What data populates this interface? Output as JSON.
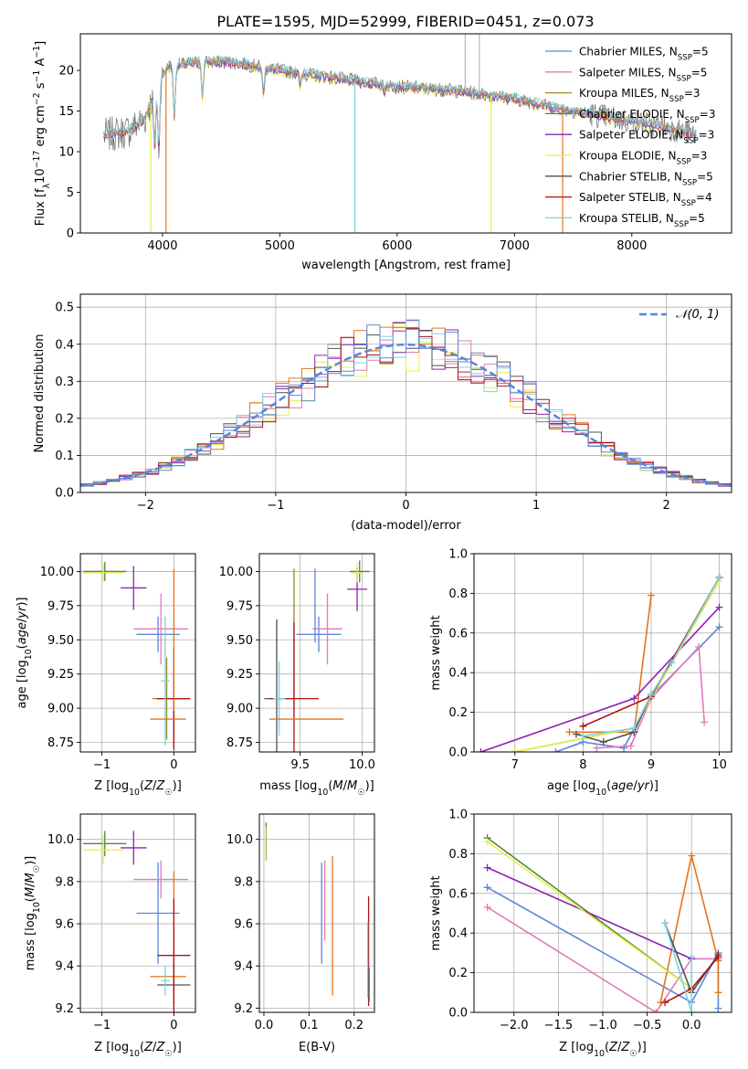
{
  "figure_title": "PLATE=1595, MJD=52999, FIBERID=0451, z=0.073",
  "colors": {
    "Chabrier MILES": "#5b86d8",
    "Salpeter MILES": "#e07aba",
    "Kroupa MILES": "#9a8a1e",
    "Chabrier ELODIE": "#4a8a3a",
    "Salpeter ELODIE": "#8e22b0",
    "Kroupa ELODIE": "#ecee4a",
    "Chabrier STELIB": "#505050",
    "Salpeter STELIB": "#b01010",
    "Kroupa STELIB": "#7ad4e0",
    "extra_orange": "#e8731a",
    "normal_curve": "#5b86d8"
  },
  "chart_data": [
    {
      "id": "spectrum",
      "type": "line",
      "title": "PLATE=1595, MJD=52999, FIBERID=0451, z=0.073",
      "xlabel": "wavelength [Angstrom, rest frame]",
      "ylabel": "Flux [f_λ10^-17 erg cm^-2 s^-1 A^-1]",
      "xlim": [
        3300,
        8850
      ],
      "ylim": [
        0,
        24.5
      ],
      "xticks": [
        4000,
        5000,
        6000,
        7000,
        8000
      ],
      "yticks": [
        0,
        5,
        10,
        15,
        20
      ],
      "legend_position": "top-right",
      "legend": [
        {
          "label": "Chabrier MILES, N",
          "sub": "SSP",
          "tail": "=5"
        },
        {
          "label": "Salpeter MILES, N",
          "sub": "SSP",
          "tail": "=5"
        },
        {
          "label": "Kroupa MILES, N",
          "sub": "SSP",
          "tail": "=3"
        },
        {
          "label": "Chabrier ELODIE, N",
          "sub": "SSP",
          "tail": "=3"
        },
        {
          "label": "Salpeter ELODIE, N",
          "sub": "SSP",
          "tail": "=3"
        },
        {
          "label": "Kroupa ELODIE, N",
          "sub": "SSP",
          "tail": "=3"
        },
        {
          "label": "Chabrier STELIB, N",
          "sub": "SSP",
          "tail": "=5"
        },
        {
          "label": "Salpeter STELIB, N",
          "sub": "SSP",
          "tail": "=4"
        },
        {
          "label": "Kroupa STELIB, N",
          "sub": "SSP",
          "tail": "=5"
        }
      ],
      "continuum_points": [
        [
          3500,
          12
        ],
        [
          3700,
          12.5
        ],
        [
          3850,
          14
        ],
        [
          3950,
          18
        ],
        [
          4050,
          20.5
        ],
        [
          4300,
          21
        ],
        [
          4600,
          21
        ],
        [
          5000,
          20
        ],
        [
          5500,
          19
        ],
        [
          6000,
          18
        ],
        [
          6500,
          17.5
        ],
        [
          7000,
          16.5
        ],
        [
          7500,
          15
        ],
        [
          7900,
          14
        ],
        [
          8300,
          13
        ],
        [
          8550,
          12
        ]
      ],
      "absorption_features": [
        [
          3933,
          6
        ],
        [
          3968,
          5
        ],
        [
          4101,
          10
        ],
        [
          4340,
          14
        ],
        [
          4861,
          15
        ],
        [
          5175,
          17
        ],
        [
          5890,
          17
        ]
      ],
      "spikes": [
        [
          3900,
          0,
          "#ecee4a"
        ],
        [
          4030,
          0,
          "#e8731a"
        ],
        [
          5640,
          0,
          "#7ad4e0"
        ],
        [
          6800,
          0,
          "#ecee4a"
        ],
        [
          7410,
          0,
          "#e8731a"
        ],
        [
          6580,
          24.5,
          "#b8b8b8"
        ],
        [
          6700,
          24.5,
          "#b8b8b8"
        ]
      ]
    },
    {
      "id": "residuals",
      "type": "line",
      "xlabel": "(data-model)/error",
      "ylabel": "Normed distribution",
      "xlim": [
        -2.5,
        2.5
      ],
      "ylim": [
        0,
        0.535
      ],
      "xticks": [
        -2,
        -1,
        0,
        1,
        2
      ],
      "yticks": [
        0.0,
        0.1,
        0.2,
        0.3,
        0.4,
        0.5
      ],
      "legend_position": "top-right",
      "legend": [
        {
          "label": "𝒩(0, 1)"
        }
      ],
      "grid": true,
      "bin_width": 0.1
    },
    {
      "id": "age_vs_Z",
      "type": "scatter",
      "xlabel": "Z [log10(Z/Z☉)]",
      "ylabel": "age  [log10(age/yr)]",
      "xlim": [
        -1.3,
        0.3
      ],
      "ylim": [
        8.68,
        10.13
      ],
      "xticks": [
        -1,
        0
      ],
      "yticks": [
        8.75,
        9.0,
        9.25,
        9.5,
        9.75,
        10.0
      ],
      "grid": true,
      "points": [
        {
          "series": "Chabrier MILES",
          "x": -0.22,
          "y": 9.54,
          "xerr": 0.3,
          "yerr": 0.13
        },
        {
          "series": "Salpeter MILES",
          "x": -0.18,
          "y": 9.58,
          "xerr": 0.38,
          "yerr": 0.26
        },
        {
          "series": "Kroupa MILES",
          "x": -0.1,
          "y": 9.07,
          "xerr": 0.2,
          "yerr": 0.3
        },
        {
          "series": "Chabrier ELODIE",
          "x": -0.96,
          "y": 10.0,
          "xerr": 0.3,
          "yerr": 0.07
        },
        {
          "series": "Salpeter ELODIE",
          "x": -0.56,
          "y": 9.88,
          "xerr": 0.18,
          "yerr": 0.16
        },
        {
          "series": "Kroupa ELODIE",
          "x": -0.98,
          "y": 9.99,
          "xerr": 0.28,
          "yerr": 0.07
        },
        {
          "series": "Chabrier STELIB",
          "x": 0.0,
          "y": 9.07,
          "xerr": 0.23,
          "yerr": 0.38
        },
        {
          "series": "Salpeter STELIB",
          "x": 0.0,
          "y": 9.07,
          "xerr": 0.23,
          "yerr": 0.36
        },
        {
          "series": "Kroupa STELIB",
          "x": -0.12,
          "y": 9.2,
          "xerr": 0.06,
          "yerr": 0.47
        },
        {
          "series": "extra_orange",
          "x": -0.08,
          "y": 8.92,
          "xerr": 0.25,
          "yerr": 0.0
        },
        {
          "series": "extra_orange",
          "x": 0.0,
          "y": 9.5,
          "xerr": 0.0,
          "yerr": 0.52
        }
      ]
    },
    {
      "id": "age_vs_mass",
      "type": "scatter",
      "xlabel": "mass [log10(M/M☉)]",
      "xlim": [
        9.17,
        10.1
      ],
      "ylim": [
        8.68,
        10.13
      ],
      "xticks": [
        9.5,
        10.0
      ],
      "yticks": [
        8.75,
        9.0,
        9.25,
        9.5,
        9.75,
        10.0
      ],
      "grid": true,
      "points": [
        {
          "series": "Chabrier MILES",
          "x": 9.65,
          "y": 9.54,
          "xerr": 0.18,
          "yerr": 0.13
        },
        {
          "series": "Salpeter MILES",
          "x": 9.72,
          "y": 9.58,
          "xerr": 0.12,
          "yerr": 0.26
        },
        {
          "series": "Kroupa MILES",
          "x": 9.45,
          "y": 9.5,
          "xerr": 0.0,
          "yerr": 0.52
        },
        {
          "series": "Chabrier ELODIE",
          "x": 9.98,
          "y": 10.0,
          "xerr": 0.08,
          "yerr": 0.08
        },
        {
          "series": "Salpeter ELODIE",
          "x": 9.96,
          "y": 9.87,
          "xerr": 0.08,
          "yerr": 0.16
        },
        {
          "series": "Kroupa ELODIE",
          "x": 9.96,
          "y": 9.99,
          "xerr": 0.05,
          "yerr": 0.07
        },
        {
          "series": "Chabrier STELIB",
          "x": 9.31,
          "y": 9.07,
          "xerr": 0.1,
          "yerr": 0.58
        },
        {
          "series": "Salpeter STELIB",
          "x": 9.45,
          "y": 9.07,
          "xerr": 0.2,
          "yerr": 0.56
        },
        {
          "series": "Kroupa STELIB",
          "x": 9.33,
          "y": 9.07,
          "xerr": 0.05,
          "yerr": 0.27
        },
        {
          "series": "extra_orange",
          "x": 9.55,
          "y": 8.92,
          "xerr": 0.3,
          "yerr": 0.0
        },
        {
          "series": "Chabrier MILES",
          "x": 9.62,
          "y": 9.75,
          "xerr": 0.0,
          "yerr": 0.27
        }
      ]
    },
    {
      "id": "mass_weight_vs_age",
      "type": "line",
      "xlabel": "age  [log10(age/yr)]",
      "ylabel": "mass weight",
      "xlim": [
        6.4,
        10.18
      ],
      "ylim": [
        0,
        1.0
      ],
      "xticks": [
        7,
        8,
        9,
        10
      ],
      "yticks": [
        0.0,
        0.2,
        0.4,
        0.6,
        0.8,
        1.0
      ],
      "grid": true,
      "series": [
        {
          "series": "Chabrier MILES",
          "x": [
            7.6,
            8.0,
            8.6,
            9.0,
            10.0
          ],
          "y": [
            0.0,
            0.05,
            0.02,
            0.28,
            0.63
          ]
        },
        {
          "series": "Salpeter MILES",
          "x": [
            8.2,
            8.7,
            9.0,
            9.7,
            9.78
          ],
          "y": [
            0.02,
            0.03,
            0.27,
            0.53,
            0.15
          ]
        },
        {
          "series": "extra_orange",
          "x": [
            7.8,
            8.75,
            9.0
          ],
          "y": [
            0.1,
            0.1,
            0.79
          ]
        },
        {
          "series": "Chabrier ELODIE",
          "x": [
            7.0,
            8.75,
            10.0
          ],
          "y": [
            0.0,
            0.12,
            0.88
          ]
        },
        {
          "series": "Salpeter ELODIE",
          "x": [
            6.5,
            8.75,
            10.0
          ],
          "y": [
            0.0,
            0.27,
            0.73
          ]
        },
        {
          "series": "Kroupa ELODIE",
          "x": [
            7.0,
            8.75,
            10.0
          ],
          "y": [
            0.0,
            0.12,
            0.86
          ]
        },
        {
          "series": "Chabrier STELIB",
          "x": [
            7.9,
            8.3,
            8.75,
            9.0,
            9.3,
            10.0
          ],
          "y": [
            0.09,
            0.05,
            0.1,
            0.29,
            0.45,
            0.88
          ]
        },
        {
          "series": "Salpeter STELIB",
          "x": [
            8.0,
            9.0,
            10.0
          ],
          "y": [
            0.13,
            0.28,
            0.88
          ]
        },
        {
          "series": "Kroupa STELIB",
          "x": [
            8.0,
            8.75,
            9.0,
            9.3,
            10.0
          ],
          "y": [
            0.08,
            0.12,
            0.29,
            0.45,
            0.88
          ]
        }
      ]
    },
    {
      "id": "mass_vs_Z",
      "type": "scatter",
      "xlabel": "Z [log10(Z/Z☉)]",
      "ylabel": "mass [log10(M/M☉)]",
      "xlim": [
        -1.3,
        0.3
      ],
      "ylim": [
        9.18,
        10.12
      ],
      "xticks": [
        -1,
        0
      ],
      "yticks": [
        9.2,
        9.4,
        9.6,
        9.8,
        10.0
      ],
      "grid": true,
      "points": [
        {
          "series": "Chabrier MILES",
          "x": -0.22,
          "y": 9.65,
          "xerr": 0.3,
          "yerr": 0.24
        },
        {
          "series": "Salpeter MILES",
          "x": -0.18,
          "y": 9.81,
          "xerr": 0.38,
          "yerr": 0.09
        },
        {
          "series": "extra_orange",
          "x": -0.08,
          "y": 9.35,
          "xerr": 0.25,
          "yerr": 0.0
        },
        {
          "series": "extra_orange",
          "x": 0.0,
          "y": 9.55,
          "xerr": 0.0,
          "yerr": 0.3
        },
        {
          "series": "Chabrier ELODIE",
          "x": -0.96,
          "y": 9.98,
          "xerr": 0.3,
          "yerr": 0.06
        },
        {
          "series": "Salpeter ELODIE",
          "x": -0.56,
          "y": 9.96,
          "xerr": 0.18,
          "yerr": 0.08
        },
        {
          "series": "Kroupa ELODIE",
          "x": -0.98,
          "y": 9.95,
          "xerr": 0.28,
          "yerr": 0.07
        },
        {
          "series": "Chabrier STELIB",
          "x": 0.0,
          "y": 9.31,
          "xerr": 0.23,
          "yerr": 0.1
        },
        {
          "series": "Salpeter STELIB",
          "x": 0.0,
          "y": 9.45,
          "xerr": 0.23,
          "yerr": 0.27
        },
        {
          "series": "Kroupa STELIB",
          "x": -0.12,
          "y": 9.33,
          "xerr": 0.06,
          "yerr": 0.07
        }
      ]
    },
    {
      "id": "mass_vs_EBV",
      "type": "scatter",
      "xlabel": "E(B-V)",
      "xlim": [
        -0.01,
        0.245
      ],
      "ylim": [
        9.18,
        10.12
      ],
      "xticks": [
        0.0,
        0.1,
        0.2
      ],
      "yticks": [
        9.2,
        9.4,
        9.6,
        9.8,
        10.0
      ],
      "grid": true,
      "points": [
        {
          "series": "Chabrier MILES",
          "x": 0.128,
          "y": 9.65,
          "xerr": 0.0,
          "yerr": 0.24
        },
        {
          "series": "Salpeter MILES",
          "x": 0.135,
          "y": 9.71,
          "xerr": 0.0,
          "yerr": 0.19
        },
        {
          "series": "extra_orange",
          "x": 0.152,
          "y": 9.59,
          "xerr": 0.0,
          "yerr": 0.33
        },
        {
          "series": "Chabrier ELODIE",
          "x": 0.005,
          "y": 9.99,
          "xerr": 0.0,
          "yerr": 0.09
        },
        {
          "series": "Kroupa ELODIE",
          "x": 0.004,
          "y": 9.98,
          "xerr": 0.0,
          "yerr": 0.08
        },
        {
          "series": "Salpeter STELIB",
          "x": 0.232,
          "y": 9.47,
          "xerr": 0.0,
          "yerr": 0.26
        },
        {
          "series": "Kroupa STELIB",
          "x": 0.23,
          "y": 9.43,
          "xerr": 0.0,
          "yerr": 0.18
        },
        {
          "series": "Chabrier STELIB",
          "x": 0.233,
          "y": 9.31,
          "xerr": 0.0,
          "yerr": 0.08
        }
      ]
    },
    {
      "id": "mass_weight_vs_Z",
      "type": "line",
      "xlabel": "Z [log10(Z/Z☉)]",
      "ylabel": "mass weight",
      "xlim": [
        -2.45,
        0.45
      ],
      "ylim": [
        0,
        1.0
      ],
      "xticks": [
        -2.0,
        -1.5,
        -1.0,
        -0.5,
        0.0
      ],
      "yticks": [
        0.0,
        0.2,
        0.4,
        0.6,
        0.8,
        1.0
      ],
      "grid": true,
      "series": [
        {
          "series": "Chabrier MILES",
          "x": [
            -2.3,
            0.0,
            0.3,
            0.3
          ],
          "y": [
            0.63,
            0.05,
            0.3,
            0.02
          ]
        },
        {
          "series": "Salpeter MILES",
          "x": [
            -2.3,
            -0.4,
            0.0,
            0.3
          ],
          "y": [
            0.53,
            0.0,
            0.27,
            0.27
          ]
        },
        {
          "series": "extra_orange",
          "x": [
            -0.35,
            0.0,
            0.3,
            0.3
          ],
          "y": [
            0.05,
            0.79,
            0.26,
            0.1
          ]
        },
        {
          "series": "Chabrier ELODIE",
          "x": [
            -2.3,
            0.0
          ],
          "y": [
            0.88,
            0.12
          ]
        },
        {
          "series": "Salpeter ELODIE",
          "x": [
            -2.3,
            0.0
          ],
          "y": [
            0.73,
            0.27
          ]
        },
        {
          "series": "Kroupa ELODIE",
          "x": [
            -2.3,
            0.0
          ],
          "y": [
            0.86,
            0.12
          ]
        },
        {
          "series": "Chabrier STELIB",
          "x": [
            -0.3,
            0.0,
            0.3
          ],
          "y": [
            0.45,
            0.1,
            0.29
          ]
        },
        {
          "series": "Salpeter STELIB",
          "x": [
            -0.3,
            0.0,
            0.3
          ],
          "y": [
            0.05,
            0.12,
            0.28
          ]
        },
        {
          "series": "Kroupa STELIB",
          "x": [
            -0.3,
            0.0,
            0.0
          ],
          "y": [
            0.45,
            0.0,
            0.28
          ]
        }
      ]
    }
  ]
}
